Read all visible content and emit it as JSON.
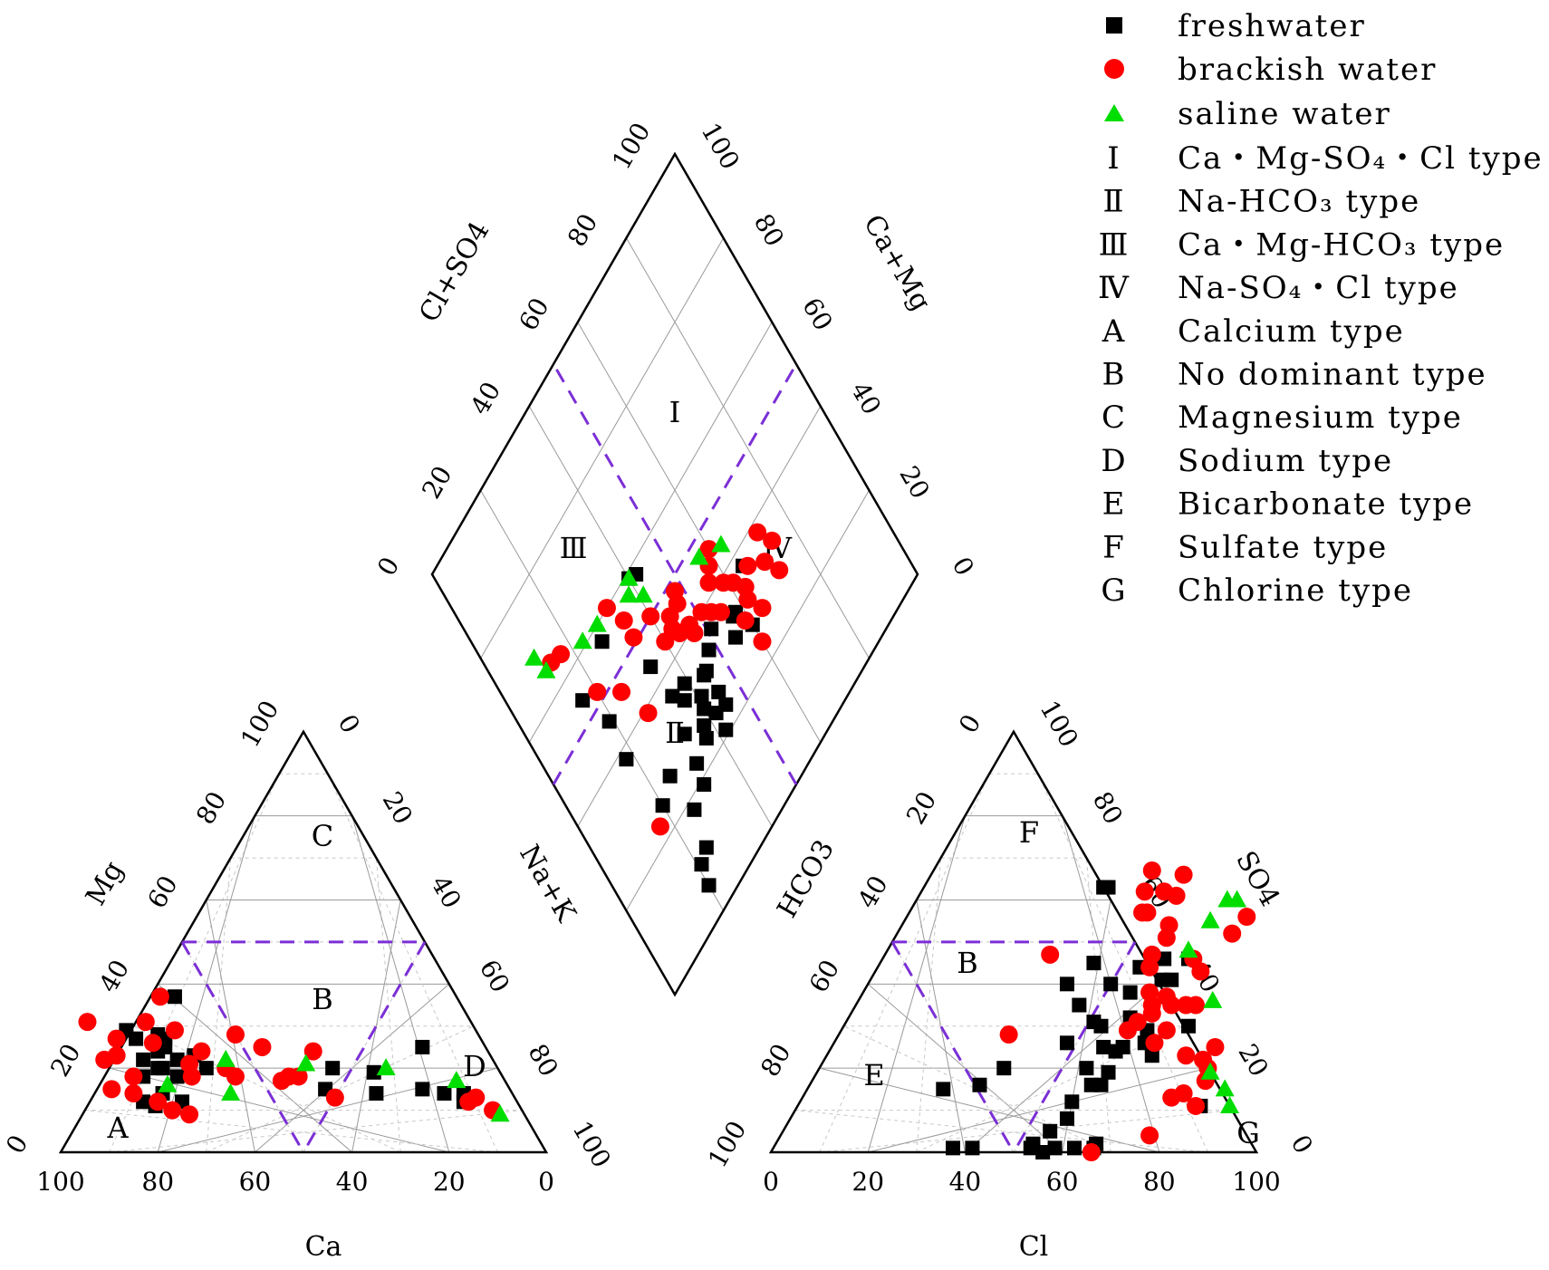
{
  "chart_data": {
    "type": "scatter",
    "subtype": "piper-diagram",
    "legend": {
      "series": [
        {
          "key": "freshwater",
          "label": "freshwater",
          "marker": "square",
          "color": "#000000"
        },
        {
          "key": "brackish",
          "label": "brackish water",
          "marker": "circle",
          "color": "#ff0000"
        },
        {
          "key": "saline",
          "label": "saline water",
          "marker": "triangle",
          "color": "#00dd00"
        }
      ],
      "types": [
        {
          "sym": "Ⅰ",
          "label": "Ca・Mg-SO₄・Cl type"
        },
        {
          "sym": "Ⅱ",
          "label": "Na-HCO₃ type"
        },
        {
          "sym": "Ⅲ",
          "label": "Ca・Mg-HCO₃ type"
        },
        {
          "sym": "Ⅳ",
          "label": "Na-SO₄・Cl type"
        },
        {
          "sym": "A",
          "label": "Calcium type"
        },
        {
          "sym": "B",
          "label": "No dominant type"
        },
        {
          "sym": "C",
          "label": "Magnesium type"
        },
        {
          "sym": "D",
          "label": "Sodium type"
        },
        {
          "sym": "E",
          "label": "Bicarbonate type"
        },
        {
          "sym": "F",
          "label": "Sulfate type"
        },
        {
          "sym": "G",
          "label": "Chlorine type"
        }
      ]
    },
    "axes": {
      "cation": {
        "bottom": "Ca",
        "left": "Mg",
        "right": "Na+K"
      },
      "anion": {
        "bottom": "Cl",
        "left": "HCO3",
        "right": "SO4"
      },
      "diamond": {
        "left": "Cl+SO4",
        "right": "Ca+Mg"
      },
      "range": [
        0,
        100
      ],
      "ticks": [
        "0",
        "20",
        "40",
        "60",
        "80",
        "100"
      ]
    },
    "regions": {
      "cation": [
        "A",
        "B",
        "C",
        "D"
      ],
      "anion": [
        "B",
        "E",
        "F",
        "G"
      ],
      "diamond": [
        "Ⅰ",
        "Ⅱ",
        "Ⅲ",
        "Ⅳ"
      ]
    },
    "cation_points": {
      "freshwater": [
        [
          77,
          12
        ],
        [
          75,
          11
        ],
        [
          72,
          14
        ],
        [
          69,
          12
        ],
        [
          74,
          18
        ],
        [
          70,
          20
        ],
        [
          72,
          22
        ],
        [
          68,
          24
        ],
        [
          66,
          25
        ],
        [
          71,
          27
        ],
        [
          66,
          28
        ],
        [
          72,
          29
        ],
        [
          69,
          20
        ],
        [
          65,
          22
        ],
        [
          63,
          21
        ],
        [
          61,
          23
        ],
        [
          67,
          18
        ],
        [
          60,
          20
        ],
        [
          65,
          27
        ],
        [
          58,
          37
        ],
        [
          38,
          15
        ],
        [
          34,
          20
        ],
        [
          28,
          14
        ],
        [
          26,
          19
        ],
        [
          18,
          15
        ],
        [
          13,
          25
        ],
        [
          14,
          14
        ],
        [
          10,
          14
        ],
        [
          11,
          12
        ]
      ],
      "brackish": [
        [
          78,
          14
        ],
        [
          76,
          18
        ],
        [
          77,
          23
        ],
        [
          75,
          27
        ],
        [
          79,
          31
        ],
        [
          82,
          15
        ],
        [
          80,
          22
        ],
        [
          74,
          12
        ],
        [
          72,
          10
        ],
        [
          68,
          26
        ],
        [
          67,
          31
        ],
        [
          62,
          29
        ],
        [
          63,
          21
        ],
        [
          64,
          18
        ],
        [
          59,
          24
        ],
        [
          56,
          20
        ],
        [
          55,
          18
        ],
        [
          50,
          28
        ],
        [
          46,
          17
        ],
        [
          46,
          25
        ],
        [
          44,
          18
        ],
        [
          42,
          18
        ],
        [
          37,
          13
        ],
        [
          36,
          24
        ],
        [
          69,
          9
        ],
        [
          61,
          37
        ],
        [
          10,
          12
        ],
        [
          8,
          13
        ],
        [
          6,
          10
        ]
      ],
      "saline": [
        [
          70,
          16
        ],
        [
          58,
          14
        ],
        [
          55,
          22
        ],
        [
          39,
          21
        ],
        [
          23,
          20
        ],
        [
          10,
          17
        ],
        [
          5,
          9
        ]
      ]
    },
    "anion_points": {
      "freshwater": [
        [
          28,
          15
        ],
        [
          35,
          16
        ],
        [
          38,
          20
        ],
        [
          38,
          63
        ],
        [
          37,
          63
        ],
        [
          44,
          45
        ],
        [
          41,
          40
        ],
        [
          46,
          35
        ],
        [
          48,
          26
        ],
        [
          51,
          31
        ],
        [
          50,
          40
        ],
        [
          54,
          44
        ],
        [
          55,
          38
        ],
        [
          53,
          30
        ],
        [
          56,
          25
        ],
        [
          55,
          20
        ],
        [
          58,
          32
        ],
        [
          58,
          46
        ],
        [
          60,
          41
        ],
        [
          62,
          41
        ],
        [
          63,
          46
        ],
        [
          60,
          31
        ],
        [
          59,
          24
        ],
        [
          60,
          19
        ],
        [
          60,
          16
        ],
        [
          58,
          16
        ],
        [
          56,
          12
        ],
        [
          57,
          8
        ],
        [
          55,
          5
        ],
        [
          53,
          2
        ],
        [
          53,
          1
        ],
        [
          56,
          0
        ],
        [
          58,
          1
        ],
        [
          62,
          1
        ],
        [
          66,
          1
        ],
        [
          66,
          2
        ],
        [
          41,
          1
        ],
        [
          37,
          1
        ],
        [
          63,
          29
        ],
        [
          67,
          23
        ],
        [
          71,
          30
        ],
        [
          83,
          11
        ],
        [
          64,
          26
        ],
        [
          60,
          25
        ]
      ],
      "brackish": [
        [
          45,
          67
        ],
        [
          46,
          62
        ],
        [
          49,
          57
        ],
        [
          50,
          62
        ],
        [
          52,
          66
        ],
        [
          53,
          61
        ],
        [
          48,
          57
        ],
        [
          55,
          54
        ],
        [
          56,
          51
        ],
        [
          55,
          47
        ],
        [
          56,
          44
        ],
        [
          59,
          38
        ],
        [
          61,
          35
        ],
        [
          60,
          31
        ],
        [
          62,
          33
        ],
        [
          59,
          29
        ],
        [
          63,
          37
        ],
        [
          65,
          35
        ],
        [
          67,
          43
        ],
        [
          66,
          26
        ],
        [
          67,
          29
        ],
        [
          68,
          35
        ],
        [
          70,
          35
        ],
        [
          69,
          52
        ],
        [
          70,
          56
        ],
        [
          74,
          23
        ],
        [
          78,
          22
        ],
        [
          79,
          25
        ],
        [
          81,
          17
        ],
        [
          80,
          20
        ],
        [
          78,
          14
        ],
        [
          76,
          13
        ],
        [
          82,
          11
        ],
        [
          76,
          4
        ],
        [
          66,
          0
        ],
        [
          64,
          46
        ],
        [
          34,
          47
        ],
        [
          35,
          28
        ]
      ],
      "saline": [
        [
          63,
          55
        ],
        [
          64,
          60
        ],
        [
          66,
          60
        ],
        [
          62,
          48
        ],
        [
          73,
          36
        ],
        [
          81,
          19
        ],
        [
          86,
          15
        ],
        [
          89,
          11
        ]
      ]
    },
    "diamond_points": {
      "freshwater": [
        [
          37,
          65
        ],
        [
          33,
          57
        ],
        [
          36,
          51
        ],
        [
          32,
          44
        ],
        [
          34,
          48
        ],
        [
          30,
          55
        ],
        [
          28,
          60
        ],
        [
          33,
          58
        ],
        [
          27,
          45
        ],
        [
          30,
          41
        ],
        [
          28,
          40
        ],
        [
          26,
          38
        ],
        [
          24,
          37
        ],
        [
          25,
          42
        ],
        [
          23,
          32
        ],
        [
          19,
          31
        ],
        [
          18,
          26
        ],
        [
          21,
          42
        ],
        [
          27,
          25
        ],
        [
          25,
          20
        ],
        [
          32,
          45
        ],
        [
          36,
          35
        ],
        [
          35,
          39
        ],
        [
          33,
          37
        ],
        [
          29,
          33
        ],
        [
          38,
          18
        ],
        [
          44,
          34
        ],
        [
          46,
          19
        ],
        [
          54,
          16
        ],
        [
          57,
          27
        ],
        [
          59,
          40
        ],
        [
          58,
          42
        ],
        [
          24,
          45
        ],
        [
          11,
          24
        ],
        [
          10,
          21
        ],
        [
          6,
          20
        ]
      ],
      "brackish": [
        [
          29,
          72
        ],
        [
          34,
          74
        ],
        [
          33,
          70
        ],
        [
          38,
          72
        ],
        [
          28,
          64
        ],
        [
          34,
          63
        ],
        [
          36,
          66
        ],
        [
          37,
          61
        ],
        [
          36,
          55
        ],
        [
          39,
          59
        ],
        [
          38,
          53
        ],
        [
          40,
          51
        ],
        [
          42,
          56
        ],
        [
          44,
          58
        ],
        [
          46,
          60
        ],
        [
          39,
          47
        ],
        [
          41,
          47
        ],
        [
          42,
          44
        ],
        [
          44,
          43
        ],
        [
          46,
          47
        ],
        [
          46,
          44
        ],
        [
          44,
          40
        ],
        [
          48,
          48
        ],
        [
          50,
          40
        ],
        [
          32,
          62
        ],
        [
          30,
          59
        ],
        [
          24,
          60
        ],
        [
          47,
          25
        ],
        [
          52,
          20
        ],
        [
          39,
          28
        ],
        [
          51,
          34
        ],
        [
          55,
          34
        ],
        [
          60,
          32
        ],
        [
          23,
          17
        ],
        [
          65,
          14
        ],
        [
          64,
          17
        ]
      ],
      "saline": [
        [
          44,
          63
        ],
        [
          47,
          57
        ],
        [
          54,
          41
        ],
        [
          59,
          40
        ],
        [
          57,
          38
        ],
        [
          60,
          28
        ],
        [
          61,
          23
        ],
        [
          65,
          12
        ],
        [
          69,
          11
        ]
      ]
    }
  }
}
